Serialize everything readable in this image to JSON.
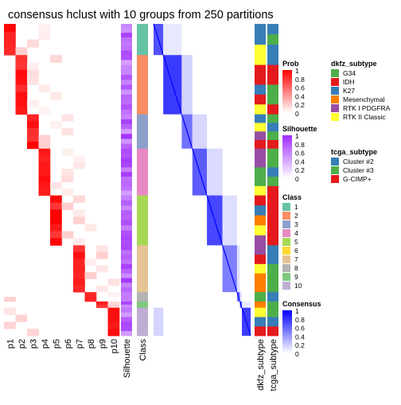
{
  "chart_data": {
    "type": "heatmap",
    "title": "consensus hclust with 10 groups from 250 partitions",
    "partition_columns": [
      "p1",
      "p2",
      "p3",
      "p4",
      "p5",
      "p6",
      "p7",
      "p8",
      "p9",
      "p10"
    ],
    "annotation_columns": [
      "Silhouette",
      "Class"
    ],
    "subtype_columns": [
      "dkfz_subtype",
      "tcga_subtype"
    ],
    "class_blocks": [
      {
        "class": 1,
        "fraction": 0.1
      },
      {
        "class": 2,
        "fraction": 0.19
      },
      {
        "class": 3,
        "fraction": 0.11
      },
      {
        "class": 4,
        "fraction": 0.15
      },
      {
        "class": 5,
        "fraction": 0.16
      },
      {
        "class": 7,
        "fraction": 0.15
      },
      {
        "class": 8,
        "fraction": 0.03
      },
      {
        "class": 9,
        "fraction": 0.02
      },
      {
        "class": 10,
        "fraction": 0.01
      }
    ],
    "color_scales": [
      {
        "name": "Prob",
        "min_color": "#ffffff",
        "max_color": "#ff0000",
        "ticks": [
          "1",
          "0.8",
          "0.6",
          "0.4",
          "0.2",
          "0"
        ]
      },
      {
        "name": "Silhouette",
        "min_color": "#ffffff",
        "max_color": "#9f2bff",
        "ticks": [
          "1",
          "0.8",
          "0.6",
          "0.4",
          "0.2",
          "0"
        ]
      },
      {
        "name": "Consensus",
        "min_color": "#ffffff",
        "max_color": "#0000ff",
        "ticks": [
          "1",
          "0.8",
          "0.6",
          "0.4",
          "0.2",
          "0"
        ]
      }
    ],
    "legends": {
      "class": {
        "title": "Class",
        "items": [
          {
            "label": "1",
            "color": "#66c2a5"
          },
          {
            "label": "2",
            "color": "#fc8d62"
          },
          {
            "label": "3",
            "color": "#8da0cb"
          },
          {
            "label": "4",
            "color": "#e78ac3"
          },
          {
            "label": "5",
            "color": "#a6d854"
          },
          {
            "label": "6",
            "color": "#ffd92f"
          },
          {
            "label": "7",
            "color": "#e5c494"
          },
          {
            "label": "8",
            "color": "#b3b3b3"
          },
          {
            "label": "9",
            "color": "#7fc97f"
          },
          {
            "label": "10",
            "color": "#beaed4"
          }
        ]
      },
      "dkfz_subtype": {
        "title": "dkfz_subtype",
        "items": [
          {
            "label": "G34",
            "color": "#4daf4a"
          },
          {
            "label": "IDH",
            "color": "#e41a1c"
          },
          {
            "label": "K27",
            "color": "#377eb8"
          },
          {
            "label": "Mesenchymal",
            "color": "#ff7f00"
          },
          {
            "label": "RTK I PDGFRA",
            "color": "#984ea3"
          },
          {
            "label": "RTK II Classic",
            "color": "#ffff33"
          }
        ]
      },
      "tcga_subtype": {
        "title": "tcga_subtype",
        "items": [
          {
            "label": "Cluster #2",
            "color": "#377eb8"
          },
          {
            "label": "Cluster #3",
            "color": "#4daf4a"
          },
          {
            "label": "G-CIMP+",
            "color": "#e41a1c"
          }
        ]
      }
    }
  }
}
